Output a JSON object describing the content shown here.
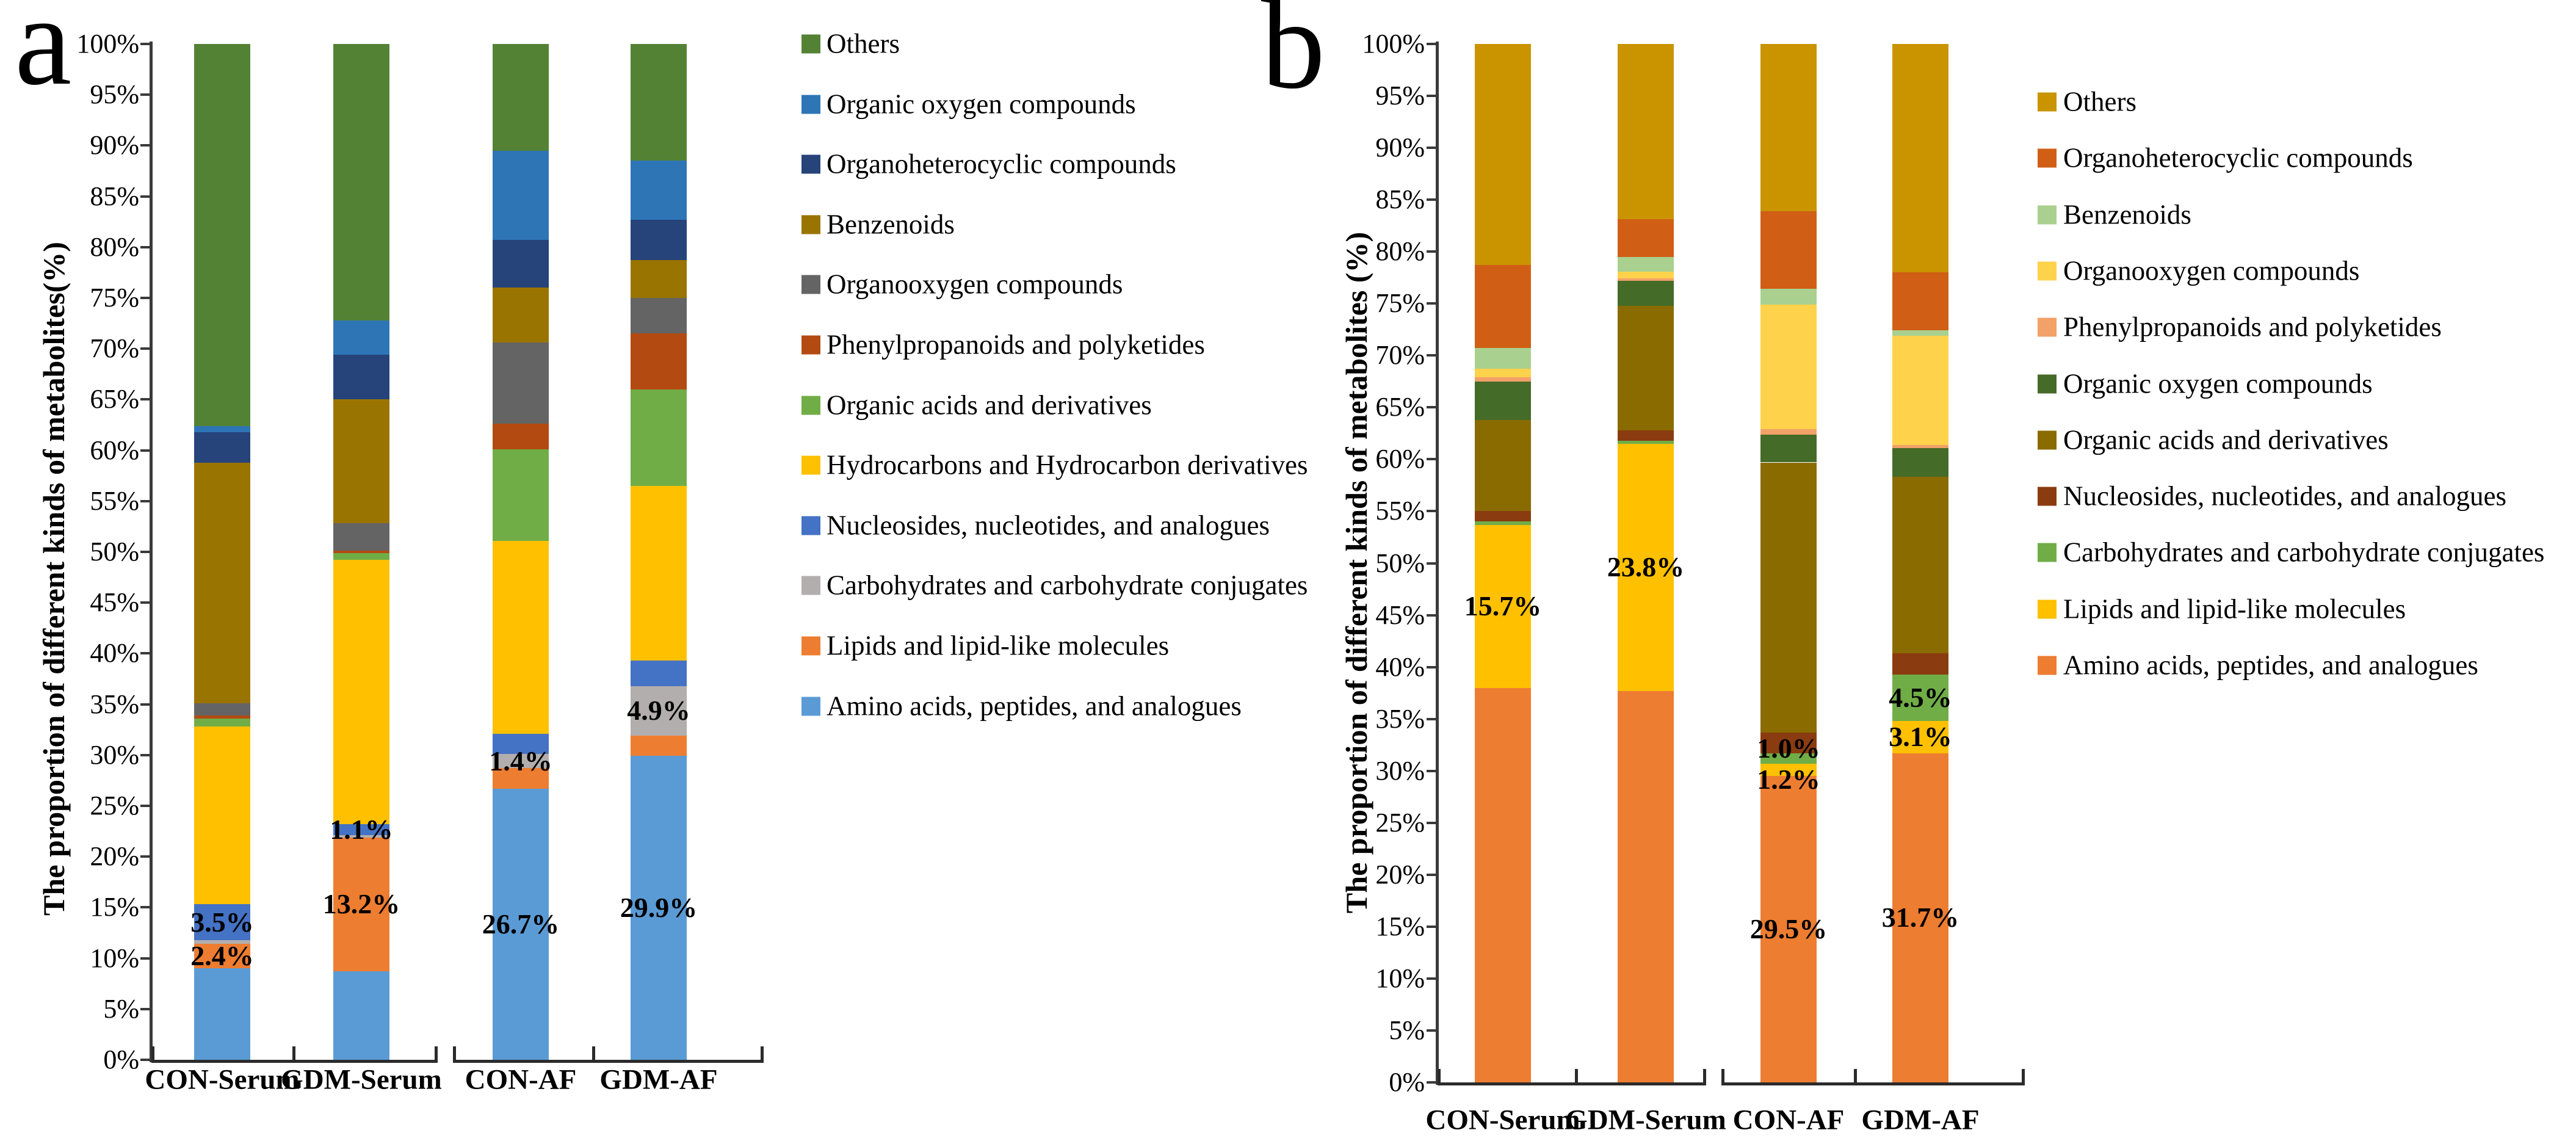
{
  "figure": {
    "panel_a_letter": "a",
    "panel_b_letter": "b"
  },
  "chart_data": [
    {
      "id": "a",
      "type": "bar",
      "subtype": "stacked-percent-column",
      "panel_letter": "a",
      "ylabel": "The proportion of different kinds of metabolites(%)",
      "ylim": [
        0,
        100
      ],
      "ytick_step": 5,
      "yticks": [
        "0%",
        "5%",
        "10%",
        "15%",
        "20%",
        "25%",
        "30%",
        "35%",
        "40%",
        "45%",
        "50%",
        "55%",
        "60%",
        "65%",
        "70%",
        "75%",
        "80%",
        "85%",
        "90%",
        "95%",
        "100%"
      ],
      "grid": false,
      "legend_position": "right",
      "categories": [
        "CON-Serum",
        "GDM-Serum",
        "CON-AF",
        "GDM-AF"
      ],
      "series": [
        {
          "name": "Amino acids, peptides, and analogues",
          "color": "#5b9bd5",
          "values": [
            9.0,
            8.7,
            26.7,
            29.9
          ]
        },
        {
          "name": "Lipids and lipid-like molecules",
          "color": "#ed7d31",
          "values": [
            2.4,
            13.2,
            2.0,
            2.0
          ]
        },
        {
          "name": "Carbohydrates and carbohydrate conjugates",
          "color": "#b3aeae",
          "values": [
            0.4,
            0.2,
            1.4,
            4.9
          ]
        },
        {
          "name": "Nucleosides, nucleotides, and analogues",
          "color": "#4472c4",
          "values": [
            3.5,
            1.1,
            2.0,
            2.5
          ]
        },
        {
          "name": "Hydrocarbons and Hydrocarbon derivatives",
          "color": "#ffc000",
          "values": [
            17.5,
            26.0,
            19.0,
            17.2
          ]
        },
        {
          "name": "Organic acids and derivatives",
          "color": "#70ad47",
          "values": [
            0.8,
            0.7,
            9.0,
            9.5
          ]
        },
        {
          "name": "Phenylpropanoids and polyketides",
          "color": "#b34a12",
          "values": [
            0.3,
            0.2,
            2.5,
            5.5
          ]
        },
        {
          "name": "Organooxygen compounds",
          "color": "#646464",
          "values": [
            1.2,
            2.7,
            8.0,
            3.5
          ]
        },
        {
          "name": "Benzenoids",
          "color": "#9a7400",
          "values": [
            23.7,
            12.2,
            5.4,
            3.7
          ]
        },
        {
          "name": "Organoheterocyclic compounds",
          "color": "#26437a",
          "values": [
            3.0,
            4.4,
            4.7,
            4.0
          ]
        },
        {
          "name": "Organic oxygen compounds",
          "color": "#2e75b6",
          "values": [
            0.6,
            3.4,
            8.8,
            5.8
          ]
        },
        {
          "name": "Others",
          "color": "#548235",
          "values": [
            37.6,
            27.2,
            10.5,
            11.5
          ]
        }
      ],
      "bar_labels": [
        {
          "bar": 0,
          "series": "Nucleosides, nucleotides, and analogues",
          "text": "3.5%",
          "dy": 0
        },
        {
          "bar": 0,
          "series": "Lipids and lipid-like molecules",
          "text": "2.4%",
          "dy": 0
        },
        {
          "bar": 1,
          "series": "Nucleosides, nucleotides, and analogues",
          "text": "1.1%",
          "dy": 0
        },
        {
          "bar": 1,
          "series": "Lipids and lipid-like molecules",
          "text": "13.2%",
          "dy": 0
        },
        {
          "bar": 2,
          "series": "Carbohydrates and carbohydrate conjugates",
          "text": "1.4%",
          "dy": 0
        },
        {
          "bar": 2,
          "series": "Amino acids, peptides, and analogues",
          "text": "26.7%",
          "dy": 0
        },
        {
          "bar": 3,
          "series": "Carbohydrates and carbohydrate conjugates",
          "text": "4.9%",
          "dy": 0
        },
        {
          "bar": 3,
          "series": "Amino acids, peptides, and analogues",
          "text": "29.9%",
          "dy": 0
        }
      ],
      "category_groups": [
        [
          "CON-Serum",
          "GDM-Serum"
        ],
        [
          "CON-AF",
          "GDM-AF"
        ]
      ]
    },
    {
      "id": "b",
      "type": "bar",
      "subtype": "stacked-percent-column",
      "panel_letter": "b",
      "ylabel": "The proportion of different kinds of metabolites (%)",
      "ylim": [
        0,
        100
      ],
      "ytick_step": 5,
      "yticks": [
        "0%",
        "5%",
        "10%",
        "15%",
        "20%",
        "25%",
        "30%",
        "35%",
        "40%",
        "45%",
        "50%",
        "55%",
        "60%",
        "65%",
        "70%",
        "75%",
        "80%",
        "85%",
        "90%",
        "95%",
        "100%"
      ],
      "grid": false,
      "legend_position": "right",
      "categories": [
        "CON-Serum",
        "GDM-Serum",
        "CON-AF",
        "GDM-AF"
      ],
      "series": [
        {
          "name": "Amino acids, peptides, and analogues",
          "color": "#ed7d31",
          "values": [
            38.0,
            37.7,
            29.5,
            31.7
          ]
        },
        {
          "name": "Lipids and lipid-like molecules",
          "color": "#ffc000",
          "values": [
            15.7,
            23.8,
            1.2,
            3.1
          ]
        },
        {
          "name": "Carbohydrates and carbohydrate conjugates",
          "color": "#70ad47",
          "values": [
            0.3,
            0.3,
            1.0,
            4.5
          ]
        },
        {
          "name": "Nucleosides, nucleotides, and analogues",
          "color": "#8a3c10",
          "values": [
            1.0,
            1.0,
            2.0,
            2.0
          ]
        },
        {
          "name": "Organic acids and derivatives",
          "color": "#8a6b00",
          "values": [
            8.8,
            12.0,
            26.0,
            17.0
          ]
        },
        {
          "name": "Organic oxygen compounds",
          "color": "#456b28",
          "values": [
            3.7,
            2.4,
            2.7,
            2.8
          ]
        },
        {
          "name": "Phenylpropanoids and polyketides",
          "color": "#f2a168",
          "values": [
            0.4,
            0.2,
            0.5,
            0.3
          ]
        },
        {
          "name": "Organooxygen compounds",
          "color": "#ffd24c",
          "values": [
            0.8,
            0.7,
            12.0,
            10.5
          ]
        },
        {
          "name": "Benzenoids",
          "color": "#a9d08e",
          "values": [
            2.0,
            1.4,
            1.5,
            0.5
          ]
        },
        {
          "name": "Organoheterocyclic compounds",
          "color": "#d05f15",
          "values": [
            8.0,
            3.6,
            7.5,
            5.6
          ]
        },
        {
          "name": "Others",
          "color": "#c99400",
          "values": [
            21.3,
            16.9,
            16.1,
            22.0
          ]
        }
      ],
      "bar_labels": [
        {
          "bar": 0,
          "series": "Lipids and lipid-like molecules",
          "text": "15.7%",
          "dy": 0
        },
        {
          "bar": 1,
          "series": "Lipids and lipid-like molecules",
          "text": "23.8%",
          "dy": 0
        },
        {
          "bar": 2,
          "series": "Carbohydrates and carbohydrate conjugates",
          "text": "1.0%",
          "dy": -16
        },
        {
          "bar": 2,
          "series": "Lipids and lipid-like molecules",
          "text": "1.2%",
          "dy": 16
        },
        {
          "bar": 2,
          "series": "Amino acids, peptides, and analogues",
          "text": "29.5%",
          "dy": 0
        },
        {
          "bar": 3,
          "series": "Carbohydrates and carbohydrate conjugates",
          "text": "4.5%",
          "dy": 0
        },
        {
          "bar": 3,
          "series": "Lipids and lipid-like molecules",
          "text": "3.1%",
          "dy": 0
        },
        {
          "bar": 3,
          "series": "Amino acids, peptides, and analogues",
          "text": "31.7%",
          "dy": 0
        }
      ],
      "category_groups": [
        [
          "CON-Serum",
          "GDM-Serum"
        ],
        [
          "CON-AF",
          "GDM-AF"
        ]
      ]
    }
  ]
}
